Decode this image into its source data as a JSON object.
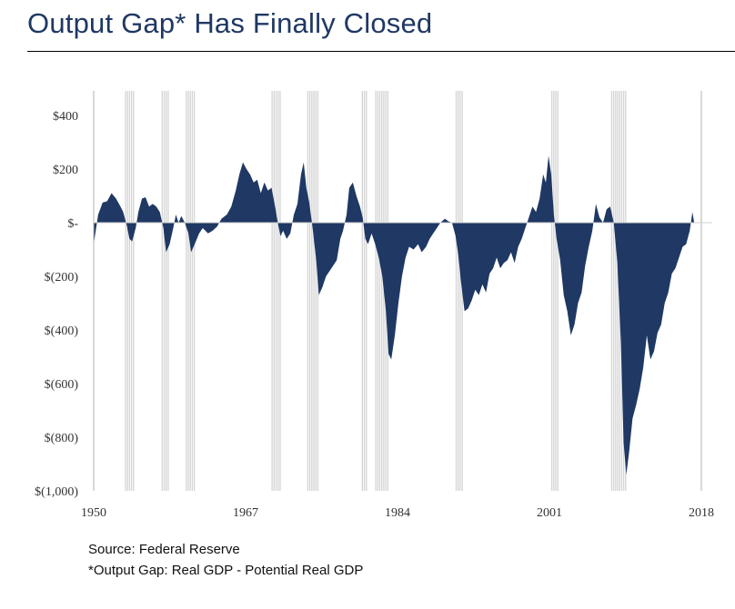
{
  "title": "Output Gap* Has Finally Closed",
  "source": "Source: Federal Reserve",
  "footnote": "*Output Gap: Real GDP - Potential Real GDP",
  "colors": {
    "area": "#1f3864",
    "recession": "#d4d4d4",
    "title": "#1f3864"
  },
  "chart_data": {
    "type": "area",
    "title": "",
    "xlabel": "",
    "ylabel": "",
    "xlim": [
      1950,
      2018
    ],
    "ylim": [
      -1000,
      500
    ],
    "y_ticks": [
      400,
      200,
      0,
      -200,
      -400,
      -600,
      -800,
      -1000
    ],
    "y_tick_labels": [
      "$400",
      "$200",
      "$-",
      "$(200)",
      "$(400)",
      "$(600)",
      "$(800)",
      "$(1,000)"
    ],
    "x_ticks": [
      1950,
      1967,
      1984,
      2001,
      2018
    ],
    "x_tick_labels": [
      "1950",
      "1967",
      "1984",
      "2001",
      "2018"
    ],
    "grid": false,
    "recessions": [
      [
        1953.5,
        1954.4
      ],
      [
        1957.6,
        1958.4
      ],
      [
        1960.3,
        1961.2
      ],
      [
        1969.9,
        1970.9
      ],
      [
        1973.9,
        1975.2
      ],
      [
        1980.0,
        1980.6
      ],
      [
        1981.5,
        1982.9
      ],
      [
        1990.5,
        1991.2
      ],
      [
        2001.2,
        2001.9
      ],
      [
        2007.9,
        2009.5
      ]
    ],
    "series": [
      {
        "values": [
          [
            1950.0,
            -80
          ],
          [
            1950.5,
            30
          ],
          [
            1951.0,
            75
          ],
          [
            1951.5,
            80
          ],
          [
            1952.0,
            110
          ],
          [
            1952.5,
            90
          ],
          [
            1953.0,
            60
          ],
          [
            1953.3,
            40
          ],
          [
            1953.7,
            -10
          ],
          [
            1954.0,
            -60
          ],
          [
            1954.3,
            -70
          ],
          [
            1954.7,
            -20
          ],
          [
            1955.0,
            40
          ],
          [
            1955.4,
            90
          ],
          [
            1955.8,
            95
          ],
          [
            1956.2,
            60
          ],
          [
            1956.6,
            70
          ],
          [
            1957.0,
            60
          ],
          [
            1957.4,
            40
          ],
          [
            1957.8,
            -20
          ],
          [
            1958.1,
            -110
          ],
          [
            1958.5,
            -80
          ],
          [
            1958.9,
            -20
          ],
          [
            1959.2,
            30
          ],
          [
            1959.5,
            0
          ],
          [
            1959.8,
            25
          ],
          [
            1960.2,
            0
          ],
          [
            1960.6,
            -40
          ],
          [
            1960.9,
            -110
          ],
          [
            1961.3,
            -80
          ],
          [
            1961.8,
            -40
          ],
          [
            1962.2,
            -20
          ],
          [
            1962.8,
            -40
          ],
          [
            1963.3,
            -30
          ],
          [
            1963.8,
            -15
          ],
          [
            1964.3,
            15
          ],
          [
            1964.9,
            30
          ],
          [
            1965.4,
            60
          ],
          [
            1965.9,
            120
          ],
          [
            1966.3,
            180
          ],
          [
            1966.7,
            225
          ],
          [
            1967.1,
            200
          ],
          [
            1967.5,
            180
          ],
          [
            1967.9,
            150
          ],
          [
            1968.3,
            160
          ],
          [
            1968.7,
            110
          ],
          [
            1969.1,
            150
          ],
          [
            1969.5,
            120
          ],
          [
            1969.9,
            130
          ],
          [
            1970.3,
            60
          ],
          [
            1970.6,
            0
          ],
          [
            1970.9,
            -50
          ],
          [
            1971.2,
            -30
          ],
          [
            1971.6,
            -60
          ],
          [
            1972.0,
            -40
          ],
          [
            1972.4,
            30
          ],
          [
            1972.8,
            70
          ],
          [
            1973.2,
            180
          ],
          [
            1973.5,
            225
          ],
          [
            1973.8,
            130
          ],
          [
            1974.1,
            80
          ],
          [
            1974.5,
            -20
          ],
          [
            1974.9,
            -140
          ],
          [
            1975.2,
            -270
          ],
          [
            1975.6,
            -240
          ],
          [
            1976.0,
            -200
          ],
          [
            1976.4,
            -180
          ],
          [
            1976.8,
            -160
          ],
          [
            1977.2,
            -140
          ],
          [
            1977.6,
            -60
          ],
          [
            1977.9,
            -30
          ],
          [
            1978.3,
            30
          ],
          [
            1978.6,
            130
          ],
          [
            1979.0,
            150
          ],
          [
            1979.4,
            100
          ],
          [
            1979.8,
            60
          ],
          [
            1980.1,
            20
          ],
          [
            1980.4,
            -60
          ],
          [
            1980.7,
            -80
          ],
          [
            1981.1,
            -40
          ],
          [
            1981.5,
            -80
          ],
          [
            1981.9,
            -130
          ],
          [
            1982.3,
            -200
          ],
          [
            1982.7,
            -330
          ],
          [
            1983.0,
            -490
          ],
          [
            1983.3,
            -510
          ],
          [
            1983.7,
            -420
          ],
          [
            1984.1,
            -300
          ],
          [
            1984.5,
            -200
          ],
          [
            1984.9,
            -130
          ],
          [
            1985.3,
            -90
          ],
          [
            1985.8,
            -100
          ],
          [
            1986.3,
            -80
          ],
          [
            1986.7,
            -110
          ],
          [
            1987.2,
            -90
          ],
          [
            1987.6,
            -60
          ],
          [
            1988.0,
            -40
          ],
          [
            1988.4,
            -20
          ],
          [
            1988.8,
            0
          ],
          [
            1989.3,
            15
          ],
          [
            1989.7,
            5
          ],
          [
            1990.1,
            0
          ],
          [
            1990.5,
            -50
          ],
          [
            1990.8,
            -120
          ],
          [
            1991.1,
            -220
          ],
          [
            1991.5,
            -330
          ],
          [
            1991.9,
            -320
          ],
          [
            1992.3,
            -290
          ],
          [
            1992.7,
            -250
          ],
          [
            1993.1,
            -270
          ],
          [
            1993.5,
            -230
          ],
          [
            1993.9,
            -260
          ],
          [
            1994.3,
            -190
          ],
          [
            1994.7,
            -170
          ],
          [
            1995.1,
            -130
          ],
          [
            1995.5,
            -170
          ],
          [
            1995.9,
            -150
          ],
          [
            1996.3,
            -140
          ],
          [
            1996.7,
            -110
          ],
          [
            1997.1,
            -150
          ],
          [
            1997.5,
            -90
          ],
          [
            1997.9,
            -60
          ],
          [
            1998.3,
            -20
          ],
          [
            1998.7,
            20
          ],
          [
            1999.1,
            60
          ],
          [
            1999.5,
            40
          ],
          [
            1999.9,
            90
          ],
          [
            2000.3,
            180
          ],
          [
            2000.6,
            150
          ],
          [
            2000.9,
            250
          ],
          [
            2001.2,
            180
          ],
          [
            2001.5,
            30
          ],
          [
            2001.8,
            -60
          ],
          [
            2002.2,
            -140
          ],
          [
            2002.6,
            -270
          ],
          [
            2003.0,
            -330
          ],
          [
            2003.4,
            -420
          ],
          [
            2003.8,
            -380
          ],
          [
            2004.2,
            -300
          ],
          [
            2004.6,
            -260
          ],
          [
            2005.0,
            -160
          ],
          [
            2005.4,
            -90
          ],
          [
            2005.8,
            -30
          ],
          [
            2006.2,
            70
          ],
          [
            2006.6,
            20
          ],
          [
            2007.0,
            0
          ],
          [
            2007.4,
            50
          ],
          [
            2007.8,
            60
          ],
          [
            2008.2,
            0
          ],
          [
            2008.6,
            -150
          ],
          [
            2009.0,
            -450
          ],
          [
            2009.3,
            -820
          ],
          [
            2009.6,
            -940
          ],
          [
            2009.9,
            -860
          ],
          [
            2010.3,
            -730
          ],
          [
            2010.7,
            -680
          ],
          [
            2011.1,
            -620
          ],
          [
            2011.5,
            -540
          ],
          [
            2011.9,
            -420
          ],
          [
            2012.3,
            -510
          ],
          [
            2012.7,
            -480
          ],
          [
            2013.1,
            -410
          ],
          [
            2013.5,
            -380
          ],
          [
            2013.9,
            -300
          ],
          [
            2014.3,
            -260
          ],
          [
            2014.7,
            -190
          ],
          [
            2015.1,
            -170
          ],
          [
            2015.5,
            -130
          ],
          [
            2015.9,
            -90
          ],
          [
            2016.3,
            -80
          ],
          [
            2016.7,
            -30
          ],
          [
            2017.0,
            40
          ],
          [
            2017.2,
            0
          ]
        ]
      }
    ]
  }
}
